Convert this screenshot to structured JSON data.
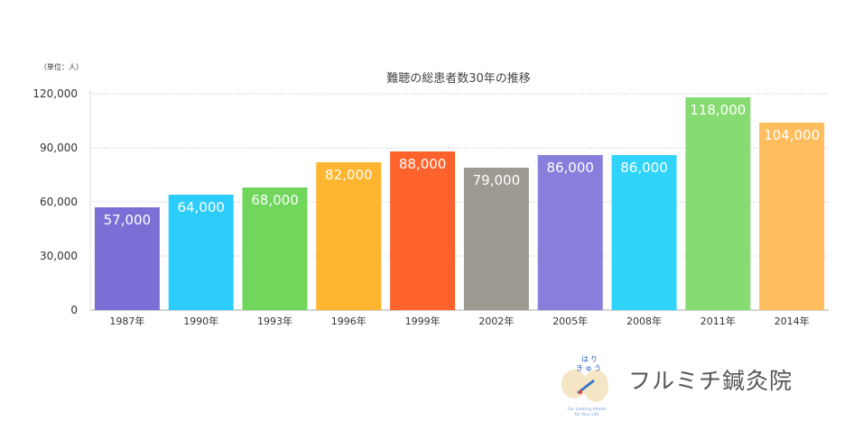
{
  "chart_data": {
    "type": "bar",
    "title": "難聴の総患者数30年の推移",
    "unit_label": "（単位：人）",
    "categories": [
      "1987年",
      "1990年",
      "1993年",
      "1996年",
      "1999年",
      "2002年",
      "2005年",
      "2008年",
      "2011年",
      "2014年"
    ],
    "values": [
      57000,
      64000,
      68000,
      82000,
      88000,
      79000,
      86000,
      86000,
      118000,
      104000
    ],
    "value_labels": [
      "57,000",
      "64,000",
      "68,000",
      "82,000",
      "88,000",
      "79,000",
      "86,000",
      "86,000",
      "118,000",
      "104,000"
    ],
    "colors": [
      "#7b6fd6",
      "#2dcdfb",
      "#71d65c",
      "#ffb52f",
      "#ff632d",
      "#9d9a91",
      "#887fdc",
      "#30d4fb",
      "#86dc72",
      "#ffbd5d"
    ],
    "yticks": [
      0,
      30000,
      60000,
      90000,
      120000
    ],
    "ytick_labels": [
      "0",
      "30,000",
      "60,000",
      "90,000",
      "120,000"
    ],
    "ylim": [
      0,
      120000
    ],
    "grid": true,
    "legend": "none"
  },
  "logo": {
    "text": "フルミチ鍼灸院",
    "kana": [
      "は",
      "り",
      "き",
      "ゅ",
      "う"
    ],
    "tagline": [
      "For Looking Ahead",
      "for Your Life"
    ]
  }
}
